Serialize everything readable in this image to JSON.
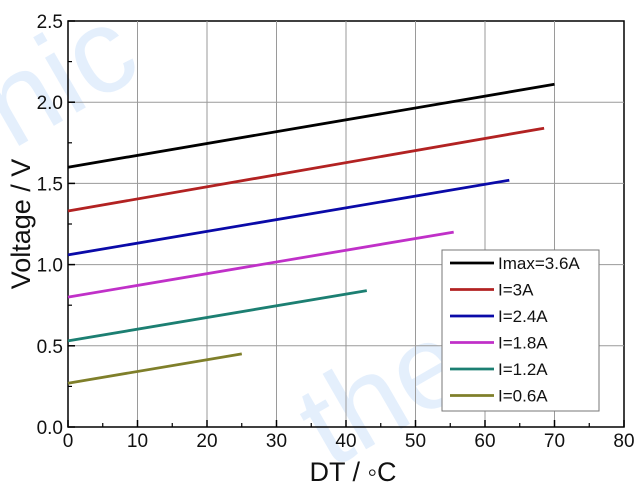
{
  "watermark": {
    "left_text": "nic",
    "right_text": "therm"
  },
  "chart_data": {
    "type": "line",
    "xlabel": "DT / ◦C",
    "ylabel": "Voltage / V",
    "xlim": [
      0,
      80
    ],
    "ylim": [
      0.0,
      2.5
    ],
    "x_ticks": [
      "0",
      "10",
      "20",
      "30",
      "40",
      "50",
      "60",
      "70",
      "80"
    ],
    "y_ticks": [
      "0.0",
      "0.5",
      "1.0",
      "1.5",
      "2.0",
      "2.5"
    ],
    "grid": true,
    "legend_position": "lower-right",
    "series": [
      {
        "name": "Imax=3.6A",
        "color": "#000000",
        "x": [
          0,
          70
        ],
        "y": [
          1.6,
          2.11
        ]
      },
      {
        "name": "I=3A",
        "color": "#b22222",
        "x": [
          0,
          68.5
        ],
        "y": [
          1.33,
          1.84
        ]
      },
      {
        "name": "I=2.4A",
        "color": "#0a0aa8",
        "x": [
          0,
          63.5
        ],
        "y": [
          1.06,
          1.52
        ]
      },
      {
        "name": "I=1.8A",
        "color": "#c030c8",
        "x": [
          0,
          55.5
        ],
        "y": [
          0.8,
          1.2
        ]
      },
      {
        "name": "I=1.2A",
        "color": "#1c7f72",
        "x": [
          0,
          43
        ],
        "y": [
          0.53,
          0.84
        ]
      },
      {
        "name": "I=0.6A",
        "color": "#7f7f2a",
        "x": [
          0,
          25
        ],
        "y": [
          0.27,
          0.45
        ]
      }
    ]
  }
}
